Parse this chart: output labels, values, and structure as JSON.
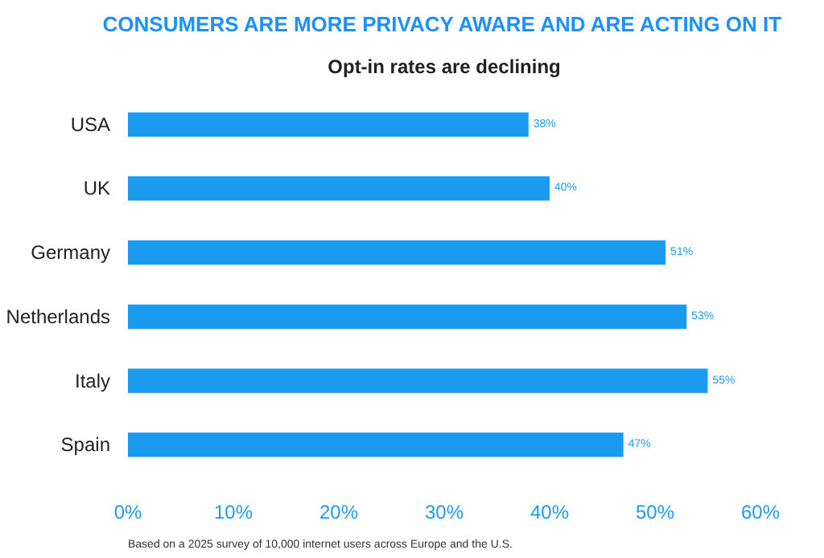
{
  "chart_data": {
    "type": "bar",
    "orientation": "horizontal",
    "title": "CONSUMERS ARE MORE PRIVACY AWARE AND ARE ACTING ON IT",
    "subtitle": "Opt-in rates are declining",
    "categories": [
      "USA",
      "UK",
      "Germany",
      "Netherlands",
      "Italy",
      "Spain"
    ],
    "values": [
      38,
      40,
      51,
      53,
      55,
      47
    ],
    "value_labels": [
      "38%",
      "40%",
      "51%",
      "53%",
      "55%",
      "47%"
    ],
    "color": "#1a9bf0",
    "xlim": [
      0,
      60
    ],
    "xticks": [
      {
        "value": 0,
        "label": "0%"
      },
      {
        "value": 10,
        "label": "10%"
      },
      {
        "value": 20,
        "label": "20%"
      },
      {
        "value": 30,
        "label": "30%"
      },
      {
        "value": 40,
        "label": "40%"
      },
      {
        "value": 50,
        "label": "50%"
      },
      {
        "value": 60,
        "label": "60%"
      }
    ],
    "grid": false,
    "annotations": [
      "Based on a 2025 survey of 10,000 internet users across Europe and the U.S."
    ]
  }
}
